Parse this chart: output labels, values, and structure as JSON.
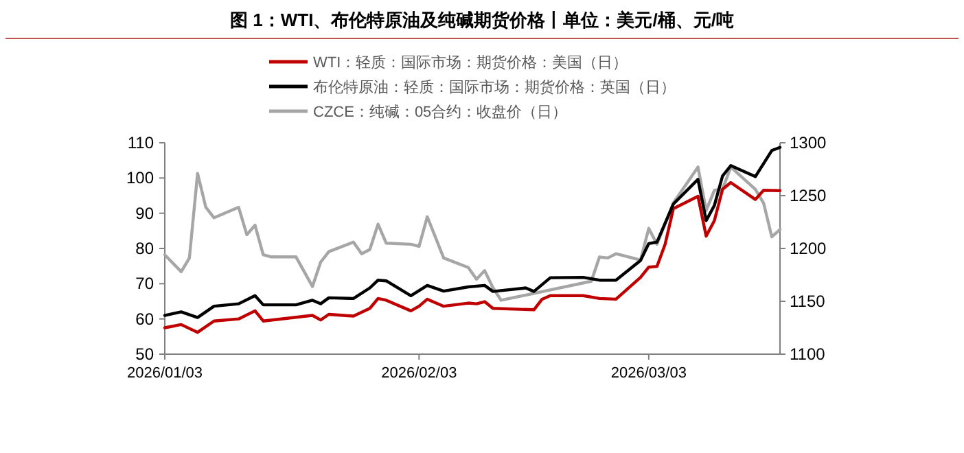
{
  "chart_data": {
    "type": "line",
    "title": "图 1：WTI、布伦特原油及纯碱期货价格丨单位：美元/桶、元/吨",
    "legend": "top",
    "grid": false,
    "marker": "none",
    "line_style": "solid",
    "xlim": [
      "2026-01-03",
      "2026-03-19"
    ],
    "xticks": [
      {
        "value": "2026-01-03",
        "label": "2026/01/03"
      },
      {
        "value": "2026-02-03",
        "label": "2026/02/03"
      },
      {
        "value": "2026-03-03",
        "label": "2026/03/03"
      }
    ],
    "ylim": [
      50,
      110
    ],
    "yticks": [
      50,
      60,
      70,
      80,
      90,
      100,
      110
    ],
    "y2lim": [
      1100,
      1300
    ],
    "y2ticks": [
      1100,
      1150,
      1200,
      1250,
      1300
    ],
    "series": [
      {
        "name": "WTI：轻质：国际市场：期货价格：美国（日）",
        "color": "#c00000",
        "x": [
          "2026-01-03",
          "2026-01-05",
          "2026-01-07",
          "2026-01-09",
          "2026-01-12",
          "2026-01-14",
          "2026-01-15",
          "2026-01-21",
          "2026-01-22",
          "2026-01-23",
          "2026-01-26",
          "2026-01-28",
          "2026-01-29",
          "2026-01-30",
          "2026-02-02",
          "2026-02-03",
          "2026-02-04",
          "2026-02-06",
          "2026-02-09",
          "2026-02-10",
          "2026-02-11",
          "2026-02-12",
          "2026-02-17",
          "2026-02-18",
          "2026-02-19",
          "2026-02-23",
          "2026-02-25",
          "2026-02-27",
          "2026-03-02",
          "2026-03-03",
          "2026-03-04",
          "2026-03-05",
          "2026-03-06",
          "2026-03-09",
          "2026-03-10",
          "2026-03-11",
          "2026-03-12",
          "2026-03-13",
          "2026-03-16",
          "2026-03-17",
          "2026-03-19"
        ],
        "values": [
          57.5,
          58.4,
          56.2,
          59.4,
          60.0,
          62.3,
          59.4,
          61.0,
          59.7,
          61.3,
          60.8,
          63.0,
          65.8,
          65.3,
          62.3,
          63.6,
          65.6,
          63.6,
          64.5,
          64.3,
          64.9,
          63.0,
          62.6,
          65.6,
          66.6,
          66.6,
          65.8,
          65.6,
          71.8,
          74.7,
          74.9,
          81.2,
          91.3,
          94.8,
          83.5,
          87.9,
          96.8,
          98.7,
          93.9,
          96.5,
          96.4
        ]
      },
      {
        "name": "布伦特原油：轻质：国际市场：期货价格：英国（日）",
        "color": "#000000",
        "x": [
          "2026-01-03",
          "2026-01-05",
          "2026-01-07",
          "2026-01-09",
          "2026-01-12",
          "2026-01-14",
          "2026-01-15",
          "2026-01-19",
          "2026-01-21",
          "2026-01-22",
          "2026-01-23",
          "2026-01-26",
          "2026-01-28",
          "2026-01-29",
          "2026-01-30",
          "2026-02-02",
          "2026-02-04",
          "2026-02-06",
          "2026-02-09",
          "2026-02-11",
          "2026-02-12",
          "2026-02-16",
          "2026-02-17",
          "2026-02-19",
          "2026-02-23",
          "2026-02-25",
          "2026-02-27",
          "2026-03-02",
          "2026-03-03",
          "2026-03-04",
          "2026-03-06",
          "2026-03-09",
          "2026-03-10",
          "2026-03-11",
          "2026-03-12",
          "2026-03-13",
          "2026-03-16",
          "2026-03-18",
          "2026-03-19"
        ],
        "values": [
          61.0,
          62.0,
          60.4,
          63.6,
          64.3,
          66.6,
          64.0,
          64.0,
          65.3,
          64.3,
          66.0,
          65.8,
          68.8,
          71.0,
          70.8,
          66.6,
          69.5,
          67.9,
          69.1,
          69.5,
          67.8,
          68.8,
          67.8,
          71.7,
          71.8,
          71.0,
          71.0,
          76.6,
          81.4,
          81.8,
          92.6,
          99.6,
          87.9,
          92.2,
          100.6,
          103.5,
          100.4,
          107.8,
          108.7
        ]
      },
      {
        "name": "CZCE：纯碱：05合约：收盘价（日）",
        "color": "#a6a6a6",
        "axis": "y2",
        "x": [
          "2026-01-03",
          "2026-01-05",
          "2026-01-06",
          "2026-01-07",
          "2026-01-08",
          "2026-01-09",
          "2026-01-12",
          "2026-01-13",
          "2026-01-14",
          "2026-01-15",
          "2026-01-16",
          "2026-01-19",
          "2026-01-21",
          "2026-01-22",
          "2026-01-23",
          "2026-01-26",
          "2026-01-27",
          "2026-01-28",
          "2026-01-29",
          "2026-01-30",
          "2026-02-02",
          "2026-02-03",
          "2026-02-04",
          "2026-02-06",
          "2026-02-09",
          "2026-02-10",
          "2026-02-11",
          "2026-02-12",
          "2026-02-13",
          "2026-02-24",
          "2026-02-25",
          "2026-02-26",
          "2026-02-27",
          "2026-03-02",
          "2026-03-03",
          "2026-03-04",
          "2026-03-06",
          "2026-03-09",
          "2026-03-10",
          "2026-03-11",
          "2026-03-12",
          "2026-03-13",
          "2026-03-16",
          "2026-03-17",
          "2026-03-18",
          "2026-03-19"
        ],
        "values": [
          1194,
          1178,
          1191,
          1271,
          1239,
          1229,
          1239,
          1213,
          1222,
          1194,
          1192,
          1192,
          1164,
          1187,
          1197,
          1206,
          1195,
          1199,
          1223,
          1205,
          1204,
          1202,
          1230,
          1191,
          1182,
          1171,
          1179,
          1163,
          1151,
          1169,
          1192,
          1191,
          1195,
          1189,
          1219,
          1204,
          1243,
          1277,
          1236,
          1255,
          1256,
          1277,
          1256,
          1243,
          1211,
          1218
        ]
      }
    ]
  }
}
